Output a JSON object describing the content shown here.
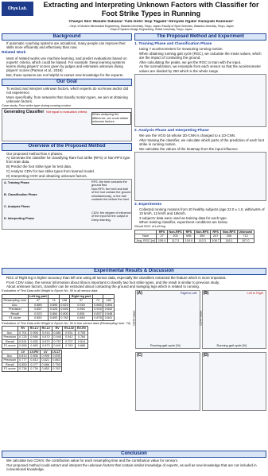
{
  "header": {
    "logo": "Ohya Lab.",
    "title": "Extracting and Interpreting Unknown Factors with Classifier for Foot Strike Types in Running",
    "authors": "Chanjin Seo¹ Masato Sabanai¹ Yuta Goto¹ Ikuji Tagami¹ Hiroyuki Ogata² Kazuyuki Kanosue³",
    "affiliation1": "¹ Dept. of Modern Mechanical Engineering, Waseda University, Tokyo, Japan ²Faculty of Sport Sciences, Waseda University, Tokyo, Japan",
    "affiliation2": "³Dept of System Design Engineering, Seikei University, Tokyo, Japan"
  },
  "left": [
    {
      "heading": "Background",
      "bullets": [
        "If automatic coaching systems are actualized, many people can improve their skills more efficiently and effectively than now."
      ]
    },
    {
      "heading": "Related Work",
      "bullets": [
        "Most of related works use machine learning, and predict evaluations based on experts' criteria, which could be biased. For example: Deep learning systems learns diving players' scores given by judges and estimates unknown diving players' scores (Parmar et al., 2019)",
        "But, these systems are not helpful to extract new knowledge for the experts."
      ]
    },
    {
      "heading": "Our Goal",
      "bullets": [
        "To extract and interpret unknown factors, which experts do not know and/or did not experience.",
        "More specifically, from networks that classify motion types, we aim at obtaining unknown factors."
      ]
    },
    {
      "heading": "Overview of the Proposed Method",
      "bullets": [
        "Our proposed method has 4 phases.",
        "A) Generate the classifier for classifying Rare foot strike (RFS) or Non-RFS type from train data.",
        "B) Predict the foot strike type for test data.",
        "C) Analyze CDIV for two strike types from learned model.",
        "D) Interpreting CDIV and obtaining unknown factors."
      ]
    }
  ],
  "left_figures": {
    "case_study": "Case study: Foot strike type during running motion",
    "generating_classifier": "Generating Classifier",
    "not_equal": "Not equal to evaluation criteria",
    "when_analyzing": "When analyzing the difference, we could obtain unknown factors.",
    "phases": [
      "A. Training Phase",
      "B. Classification Phase",
      "C. Analysis Phase",
      "D. Interpreting Phase"
    ],
    "rfs_note": "RFS: the heel contacts the ground first.",
    "nonrfs_note": "Non-RFS: the heel and ball of the foot contact the ground simultaneously, or the ball contacts the before the heel.",
    "cdiv_note": "CDIV: the degree of influence of the input for the output in Deep learning."
  },
  "right": {
    "heading": "The Proposed Method and Experiment",
    "sections": [
      {
        "heading": "1. Training Phase and Classification Phase",
        "bullets": [
          "Using 7 accelerometers for measuring running motion.",
          "When obtaining running gait cycle (RGC), we calculate the mean values, which are the impact of contacting the ground.",
          "After calculating the peaks, we get the RGC to train with the input.",
          "As the normalization, we resample from each sensor so that the accelerometer values are divided by 250 which is the whole range."
        ]
      },
      {
        "heading": "2. Analysis Phase and Interpreting Phase",
        "bullets": [
          "We use the VGG-16 whose 2D-CNN is changed to a 1D-CNN.",
          "After training the classifier, we calculate which parts of the prediction of each foot strike in running motion.",
          "We calculate the values of the heatmap from the input influence."
        ]
      },
      {
        "heading": "3. Experiments",
        "bullets": [
          "Collected running motions from 20 healthy subjects (age 22.0 ± 1.0, within±5% of 10 km/h, 12 km/h and 15km/h.",
          "3 subjects' data were used as training data for each type.",
          "When training classifier, experiment conditions are below."
        ]
      }
    ],
    "table": {
      "caption": "Result RGC of Left leg",
      "headers": [
        "",
        "RFS",
        "Non-RFS",
        "RFS",
        "Non-RFS",
        "RFS",
        "Non-RFS",
        "Unknown"
      ],
      "rows": [
        [
          "Num",
          "27",
          "203",
          "695",
          "350",
          "247",
          "206",
          "712"
        ],
        [
          "Avg. RGC [m]",
          "109.4",
          "117.3",
          "104.9",
          "110.3",
          "108.7",
          "118.1",
          "107.0"
        ]
      ]
    }
  },
  "results": {
    "heading": "Experimental Results & Discussion",
    "bullets": [
      "RGC of Right leg is higher accuracy than left one using all sensor data, especially the classifiers extracted the feature which is more important.",
      "From CDIV value, the sensor information about tibia is important to classify two foot strike types, and the result is similar to previous study.",
      "About unknown factors, classifier can be extracted about contacting the ground and swinging legs which is related to running."
    ],
    "table1": {
      "caption": "Evaluation of Test Data with Weight in Epoch No. 50 in all sensor data",
      "headers": [
        "",
        "Left leg part",
        "",
        "",
        "Right leg part",
        "",
        ""
      ],
      "rows": [
        [
          "Resampling num",
          "37",
          "74",
          "148",
          "37",
          "74",
          "148"
        ],
        [
          "Acc.",
          "0.889",
          "0.895",
          "0.823",
          "0.916",
          "0.855",
          "0.894"
        ],
        [
          "Precision",
          "0.857",
          "0.926",
          "0.846",
          "0.954",
          "0.916",
          "0.842"
        ],
        [
          "Recall",
          "0.923",
          "0.864",
          "0.800",
          "0.851",
          "0.837",
          "0.948"
        ],
        [
          "F1 score",
          "0.852",
          "0.893",
          "0.782",
          "0.884",
          "0.878",
          "0.841"
        ]
      ]
    },
    "table2": {
      "caption": "Evaluation of Test Data with Weight in Epoch No. 50 in two sensor data (Resampling num: 74)",
      "headers": [
        "",
        "RV",
        "RV-LV",
        "RV-LV",
        "RV",
        "RV-LW",
        "RV-RV"
      ],
      "rows": [
        [
          "Acc.",
          "0.701",
          "0.905",
          "0.914",
          "0.881",
          "0.931",
          "0.705"
        ],
        [
          "Precision",
          "0.725",
          "0.895",
          "0.870",
          "0.946",
          "0.942",
          "0.764"
        ],
        [
          "Recall",
          "0.531",
          "0.832",
          "0.870",
          "0.757",
          "0.707",
          "0.514"
        ],
        [
          "F1 score",
          "0.658",
          "0.863",
          "0.870",
          "0.841",
          "0.769",
          "0.665"
        ]
      ]
    },
    "table3": {
      "headers": [
        "",
        "LV",
        "LV-RV",
        "LV",
        "LV-LT"
      ],
      "rows": [
        [
          "Acc.",
          "0.813",
          "0.806",
          "0.905",
          "0.835"
        ],
        [
          "Precision",
          "0.777",
          "0.814",
          "0.821",
          "0.863"
        ],
        [
          "Recall",
          "0.859",
          "0.077",
          "0.886",
          "0.756"
        ],
        [
          "F1 score",
          "0.736",
          "0.739",
          "0.853",
          "0.762"
        ]
      ]
    },
    "panels": [
      "(A)",
      "(B)",
      "(C)",
      "(D)"
    ],
    "legend": [
      "Right to Left",
      "Left to Right"
    ],
    "y_label": "CDIV value",
    "x_label": "Running gait cycle [%]"
  },
  "conclusion": {
    "heading": "Conclusion",
    "bullets": [
      "We calculate two CDIVs: the contribution value for each resampling time and the contribution value for sensors.",
      "Our proposed method could extract and interpret the unknown factors that contain similar knowledge of experts, as well as new knowledge that are not included in conventional knowledge."
    ]
  }
}
